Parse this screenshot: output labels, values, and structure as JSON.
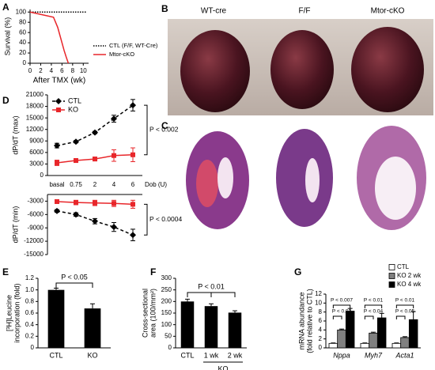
{
  "photos": {
    "B": {
      "panel": "B",
      "captions": [
        "WT-cre",
        "F/F",
        "Mtor-cKO"
      ]
    },
    "C": {
      "panel": "C"
    }
  },
  "chart_data": [
    {
      "type": "line",
      "panel": "A",
      "x": [
        0,
        4.4,
        4.8,
        5.2,
        5.6,
        6,
        6.4,
        6.8,
        7.2,
        10.5
      ],
      "xlim": [
        0,
        11
      ],
      "xticks": [
        0,
        2,
        4,
        6,
        8,
        10
      ],
      "ylim": [
        0,
        105
      ],
      "yticks": [
        0,
        20,
        40,
        60,
        80,
        100
      ],
      "xlabel": "After TMX (wk)",
      "ylabel": [
        "Survival (%)"
      ],
      "legend": "right",
      "series": [
        {
          "name": "CTL (F/F, WT-Cre)",
          "color": "#000000",
          "dash": "dotted",
          "values": [
            100,
            100,
            100,
            100,
            100,
            100,
            100,
            100,
            100,
            100
          ]
        },
        {
          "name": "Mtor-cKO",
          "color": "#e8262a",
          "values": [
            100,
            90,
            80,
            70,
            55,
            40,
            25,
            12,
            0,
            null
          ]
        }
      ]
    },
    {
      "type": "line",
      "panel": "D",
      "categories": [
        "basal",
        "0.75",
        "2",
        "4",
        "6"
      ],
      "xlabel": "Dob (U)",
      "ylabel": [
        "dP/dT (max)"
      ],
      "ylim": [
        0,
        21000
      ],
      "yticks": [
        0,
        3000,
        6000,
        9000,
        12000,
        15000,
        18000,
        21000
      ],
      "legend": "upper left",
      "series": [
        {
          "name": "CTL",
          "color": "#000000",
          "dash": "dashed",
          "marker": "diamond",
          "values": [
            7800,
            8800,
            11200,
            14800,
            18300
          ],
          "errors": [
            600,
            300,
            300,
            900,
            1500
          ]
        },
        {
          "name": "KO",
          "color": "#e8262a",
          "marker": "square",
          "values": [
            3300,
            3900,
            4300,
            5200,
            5400
          ],
          "errors": [
            700,
            500,
            500,
            1500,
            1800
          ]
        }
      ],
      "annotations": [
        "P < 0.002"
      ]
    },
    {
      "type": "line",
      "ylabel": [
        "dP/dT (min)"
      ],
      "ylim": [
        -15000,
        -1500
      ],
      "yticks": [
        -3000,
        -6000,
        -9000,
        -12000,
        -15000
      ],
      "series": [
        {
          "color": "#000000",
          "dash": "dashed",
          "marker": "diamond",
          "values": [
            -5200,
            -6000,
            -7500,
            -8800,
            -10600
          ],
          "errors": [
            300,
            400,
            600,
            1000,
            1300
          ]
        },
        {
          "color": "#e8262a",
          "marker": "square",
          "values": [
            -3100,
            -3300,
            -3400,
            -3500,
            -3700
          ],
          "errors": [
            400,
            500,
            600,
            700,
            900
          ]
        }
      ],
      "annotations": [
        "P < 0.0004"
      ]
    },
    {
      "type": "bar",
      "panel": "E",
      "categories": [
        "CTL",
        "KO"
      ],
      "values": [
        1.0,
        0.68
      ],
      "errors": [
        0.03,
        0.08
      ],
      "color": "#000000",
      "ylim": [
        0,
        1.2
      ],
      "yticks": [
        0,
        0.2,
        0.4,
        0.6,
        0.8,
        {
          "value": 1,
          "label": "1.0"
        },
        1.2
      ],
      "ylabel": [
        "[³H]Leucine",
        "incorporation (fold)"
      ],
      "annotations": [
        "P < 0.05"
      ]
    },
    {
      "type": "bar",
      "panel": "F",
      "categories": [
        "CTL",
        "1 wk",
        "2 wk"
      ],
      "values": [
        200,
        180,
        152
      ],
      "errors": [
        10,
        10,
        8
      ],
      "color": "#000000",
      "ylim": [
        0,
        300
      ],
      "yticks": [
        0,
        50,
        100,
        150,
        200,
        250,
        300
      ],
      "ylabel": [
        "Cross-sectional",
        "area (100/mm²)"
      ],
      "group_label": "KO",
      "annotations": [
        "P < 0.01"
      ]
    },
    {
      "type": "bar",
      "panel": "G",
      "categories": [
        "Nppa",
        "Myh7",
        "Acta1"
      ],
      "ylim": [
        0,
        12
      ],
      "yticks": [
        0,
        2,
        4,
        6,
        8,
        10,
        12
      ],
      "ylabel": [
        "mRNA abundance",
        "(fold relative to CTL)"
      ],
      "legend": "upper right",
      "series": [
        {
          "name": "CTL",
          "color": "#ffffff",
          "values": [
            1,
            1,
            1
          ],
          "errors": [
            0.1,
            0.1,
            0.1
          ]
        },
        {
          "name": "KO 2 wk",
          "color": "#808080",
          "values": [
            4,
            3.3,
            2.3
          ],
          "errors": [
            0.2,
            0.2,
            0.2
          ]
        },
        {
          "name": "KO 4 wk",
          "color": "#000000",
          "values": [
            8.2,
            6.7,
            6.3
          ],
          "errors": [
            0.6,
            1.0,
            1.8
          ]
        }
      ],
      "annotations": [
        "P < 0.007",
        "P < 0.02",
        "P < 0.01",
        "P < 0.04",
        "P < 0.01",
        "P < 0.05"
      ]
    }
  ]
}
